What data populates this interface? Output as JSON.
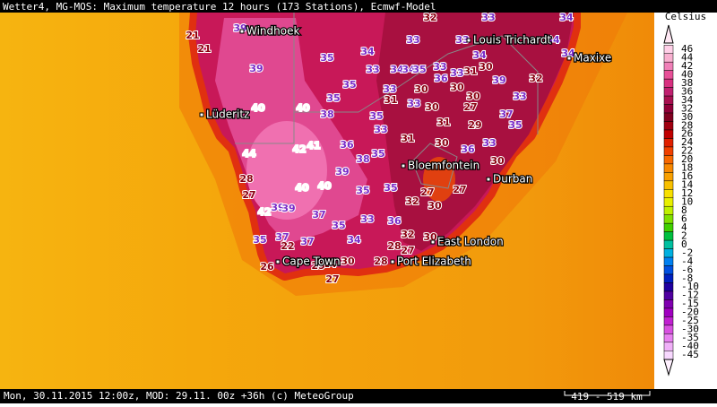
{
  "header": {
    "title": "Wetter4, MG-MOS: Maximum temperature 12 hours (173 Stations), Ecmwf-Model"
  },
  "cities": [
    "Windhoek",
    "Louis Trichardt",
    "Maxixe",
    "Lüderitz",
    "Bloemfontein",
    "Durban",
    "East London",
    "Port Elizabeth",
    "Cape Town"
  ],
  "stations": [
    32,
    33,
    34,
    39,
    21,
    21,
    33,
    34,
    33,
    34,
    35,
    39,
    34,
    33,
    34,
    34,
    35,
    33,
    33,
    31,
    30,
    34,
    32,
    36,
    33,
    31,
    35,
    35,
    30,
    30,
    30,
    39,
    33,
    40,
    40,
    38,
    35,
    33,
    30,
    27,
    37,
    35,
    44,
    41,
    42,
    36,
    33,
    31,
    31,
    30,
    36,
    29,
    33,
    30,
    39,
    38,
    35,
    40,
    40,
    35,
    35,
    27,
    27,
    32,
    28,
    27,
    42,
    39,
    39,
    37,
    35,
    36,
    33,
    30,
    35,
    37,
    37,
    34,
    30,
    32,
    28,
    27,
    26,
    24,
    25,
    30,
    28,
    27,
    22
  ],
  "legend": {
    "unit": "Celsius",
    "labels": [
      46,
      44,
      42,
      40,
      38,
      36,
      34,
      32,
      30,
      28,
      26,
      24,
      22,
      20,
      18,
      16,
      14,
      12,
      10,
      8,
      6,
      4,
      2,
      0,
      -2,
      -4,
      -6,
      -8,
      -10,
      -12,
      -15,
      -20,
      -25,
      -30,
      -35,
      -40,
      -45
    ],
    "colors": [
      "#ffd0e8",
      "#f8b0d0",
      "#f080b8",
      "#e85098",
      "#d83080",
      "#c02070",
      "#a81050",
      "#900038",
      "#800020",
      "#a00010",
      "#c00000",
      "#e02000",
      "#f04000",
      "#f86800",
      "#f88800",
      "#f8a000",
      "#f8c000",
      "#f8e000",
      "#e8f000",
      "#c0f000",
      "#80e000",
      "#40d000",
      "#00c040",
      "#00c0a0",
      "#00b0e0",
      "#0080f0",
      "#0050e0",
      "#0020c0",
      "#2000a0",
      "#5000a0",
      "#8000b0",
      "#a000c0",
      "#c020d0",
      "#d850e0",
      "#e880f0",
      "#f0b0f8",
      "#f8d8ff"
    ]
  },
  "footer": {
    "info": "Mon, 30.11.2015 12:00z, MOD: 29.11. 00z +36h (c) MeteoGroup",
    "scale": "419 - 519 km"
  }
}
